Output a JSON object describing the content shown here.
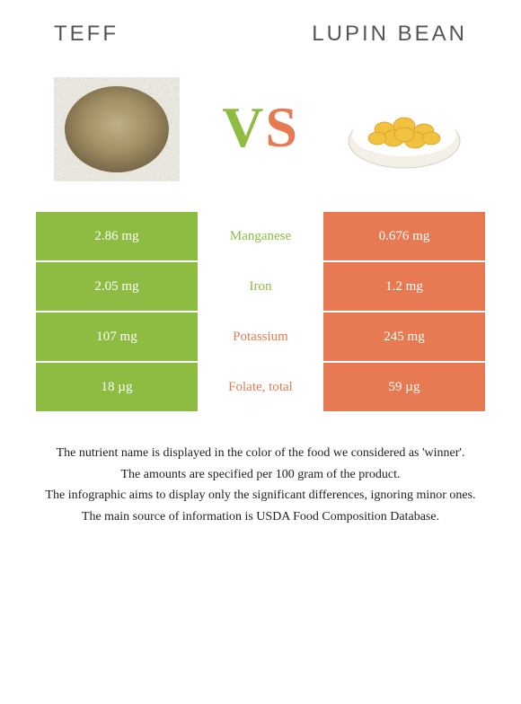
{
  "header": {
    "left_title": "Teff",
    "right_title": "Lupin Bean"
  },
  "vs": {
    "v": "V",
    "s": "S"
  },
  "colors": {
    "left": "#8ebc42",
    "right": "#e77a52",
    "mid_bg": "#ffffff"
  },
  "rows": [
    {
      "left": "2.86 mg",
      "label": "Manganese",
      "right": "0.676 mg",
      "winner": "left"
    },
    {
      "left": "2.05 mg",
      "label": "Iron",
      "right": "1.2 mg",
      "winner": "left"
    },
    {
      "left": "107 mg",
      "label": "Potassium",
      "right": "245 mg",
      "winner": "right"
    },
    {
      "left": "18 µg",
      "label": "Folate, total",
      "right": "59 µg",
      "winner": "right"
    }
  ],
  "footnotes": [
    "The nutrient name is displayed in the color of the food we considered as 'winner'.",
    "The amounts are specified per 100 gram of the product.",
    "The infographic aims to display only the significant differences, ignoring minor ones.",
    "The main source of information is USDA Food Composition Database."
  ]
}
